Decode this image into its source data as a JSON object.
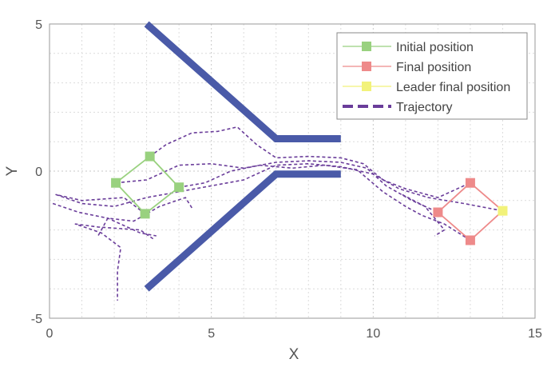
{
  "chart_data": {
    "type": "line",
    "xlabel": "X",
    "ylabel": "Y",
    "xlim": [
      0,
      15
    ],
    "ylim": [
      -5,
      5
    ],
    "xticks": [
      0,
      5,
      10,
      15
    ],
    "yticks": [
      -5,
      0,
      5
    ],
    "minor_grid": true,
    "grid_style": "dotted",
    "legend": {
      "placement": "top-right",
      "entries": [
        {
          "label": "Initial position",
          "color": "#99d17f",
          "marker": "square"
        },
        {
          "label": "Final position",
          "color": "#ee8a8a",
          "marker": "square"
        },
        {
          "label": "Leader final position",
          "color": "#f2f27a",
          "marker": "square"
        },
        {
          "label": "Trajectory",
          "color": "#6a3d9a",
          "style": "dashed"
        }
      ]
    },
    "walls": {
      "color": "#4a5aa8",
      "upper": [
        [
          3,
          5
        ],
        [
          7,
          1.1
        ],
        [
          9,
          1.1
        ]
      ],
      "lower": [
        [
          3,
          -4
        ],
        [
          7,
          -0.1
        ],
        [
          9,
          -0.1
        ]
      ]
    },
    "initial_positions": [
      [
        3.1,
        0.5
      ],
      [
        2.05,
        -0.4
      ],
      [
        4.0,
        -0.55
      ],
      [
        2.95,
        -1.45
      ]
    ],
    "initial_formation": [
      [
        3.1,
        0.5
      ],
      [
        2.05,
        -0.4
      ],
      [
        2.95,
        -1.45
      ],
      [
        4.0,
        -0.55
      ]
    ],
    "final_positions": [
      [
        13.0,
        -0.4
      ],
      [
        12.0,
        -1.4
      ],
      [
        13.0,
        -2.35
      ]
    ],
    "leader_final_position": [
      14.0,
      -1.35
    ],
    "final_formation": [
      [
        13.0,
        -0.4
      ],
      [
        12.0,
        -1.4
      ],
      [
        13.0,
        -2.35
      ],
      [
        14.0,
        -1.35
      ]
    ],
    "trajectories": [
      [
        [
          3.1,
          0.5
        ],
        [
          3.6,
          0.9
        ],
        [
          4.4,
          1.3
        ],
        [
          5.2,
          1.35
        ],
        [
          5.8,
          1.5
        ],
        [
          6.4,
          0.9
        ],
        [
          7.0,
          0.45
        ],
        [
          8.0,
          0.5
        ],
        [
          9.0,
          0.45
        ],
        [
          9.7,
          0.25
        ],
        [
          10.3,
          -0.3
        ],
        [
          11.0,
          -0.6
        ],
        [
          12.0,
          -0.9
        ],
        [
          13.0,
          -0.4
        ]
      ],
      [
        [
          2.05,
          -0.4
        ],
        [
          3.0,
          -0.3
        ],
        [
          4.0,
          0.2
        ],
        [
          5.0,
          0.25
        ],
        [
          6.0,
          0.1
        ],
        [
          7.0,
          0.3
        ],
        [
          8.0,
          0.35
        ],
        [
          9.0,
          0.3
        ],
        [
          9.8,
          0.1
        ],
        [
          10.4,
          -0.5
        ],
        [
          11.2,
          -1.0
        ],
        [
          12.0,
          -1.4
        ]
      ],
      [
        [
          4.0,
          -0.55
        ],
        [
          4.8,
          -0.4
        ],
        [
          5.6,
          0.0
        ],
        [
          6.5,
          0.2
        ],
        [
          7.5,
          0.1
        ],
        [
          8.5,
          0.2
        ],
        [
          9.5,
          0.05
        ],
        [
          10.3,
          -0.7
        ],
        [
          11.0,
          -1.2
        ],
        [
          11.5,
          -1.5
        ],
        [
          12.2,
          -1.8
        ],
        [
          13.0,
          -2.35
        ]
      ],
      [
        [
          2.95,
          -1.45
        ],
        [
          2.3,
          -0.9
        ],
        [
          1.0,
          -1.0
        ],
        [
          0.2,
          -0.8
        ],
        [
          1.0,
          -1.1
        ],
        [
          2.0,
          -1.2
        ],
        [
          3.0,
          -0.9
        ],
        [
          4.5,
          -0.6
        ],
        [
          6.0,
          -0.3
        ],
        [
          7.0,
          0.2
        ],
        [
          8.0,
          0.25
        ],
        [
          9.0,
          0.15
        ],
        [
          10.0,
          -0.1
        ],
        [
          10.8,
          -0.6
        ],
        [
          11.7,
          -0.9
        ],
        [
          12.8,
          -1.1
        ],
        [
          14.0,
          -1.35
        ]
      ],
      [
        [
          3.2,
          -2.3
        ],
        [
          2.8,
          -2.0
        ],
        [
          1.5,
          -1.9
        ],
        [
          0.8,
          -1.8
        ],
        [
          1.6,
          -2.1
        ],
        [
          2.2,
          -2.6
        ],
        [
          2.1,
          -3.4
        ],
        [
          2.1,
          -4.4
        ]
      ],
      [
        [
          4.4,
          -1.25
        ],
        [
          4.2,
          -0.9
        ],
        [
          3.4,
          -1.2
        ],
        [
          2.6,
          -1.7
        ],
        [
          1.8,
          -1.6
        ],
        [
          1.5,
          -2.2
        ]
      ],
      [
        [
          0.1,
          -1.1
        ],
        [
          0.9,
          -1.4
        ],
        [
          1.8,
          -1.6
        ],
        [
          2.8,
          -2.1
        ],
        [
          3.3,
          -2.2
        ]
      ],
      [
        [
          10.9,
          -0.8
        ],
        [
          11.6,
          -1.2
        ],
        [
          12.2,
          -2.0
        ],
        [
          11.9,
          -2.2
        ]
      ]
    ]
  }
}
